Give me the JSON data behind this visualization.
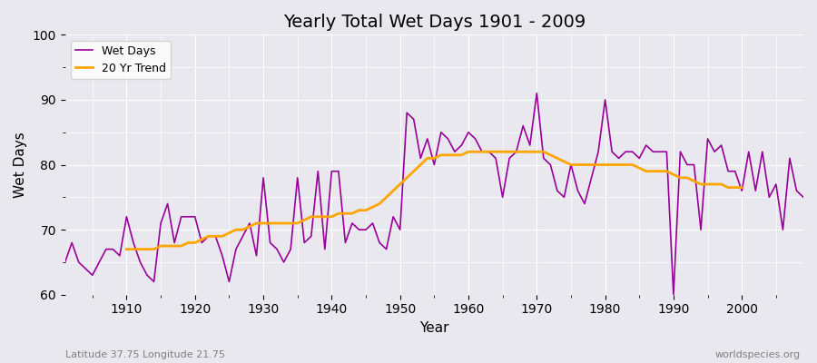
{
  "title": "Yearly Total Wet Days 1901 - 2009",
  "xlabel": "Year",
  "ylabel": "Wet Days",
  "subtitle": "Latitude 37.75 Longitude 21.75",
  "watermark": "worldspecies.org",
  "ylim": [
    60,
    100
  ],
  "xlim": [
    1901,
    2009
  ],
  "bg_color": "#e8e8ee",
  "wet_days_color": "#990099",
  "trend_color": "#FFA500",
  "years": [
    1901,
    1902,
    1903,
    1904,
    1905,
    1906,
    1907,
    1908,
    1909,
    1910,
    1911,
    1912,
    1913,
    1914,
    1915,
    1916,
    1917,
    1918,
    1919,
    1920,
    1921,
    1922,
    1923,
    1924,
    1925,
    1926,
    1927,
    1928,
    1929,
    1930,
    1931,
    1932,
    1933,
    1934,
    1935,
    1936,
    1937,
    1938,
    1939,
    1940,
    1941,
    1942,
    1943,
    1944,
    1945,
    1946,
    1947,
    1948,
    1949,
    1950,
    1951,
    1952,
    1953,
    1954,
    1955,
    1956,
    1957,
    1958,
    1959,
    1960,
    1961,
    1962,
    1963,
    1964,
    1965,
    1966,
    1967,
    1968,
    1969,
    1970,
    1971,
    1972,
    1973,
    1974,
    1975,
    1976,
    1977,
    1978,
    1979,
    1980,
    1981,
    1982,
    1983,
    1984,
    1985,
    1986,
    1987,
    1988,
    1989,
    1990,
    1991,
    1992,
    1993,
    1994,
    1995,
    1996,
    1997,
    1998,
    1999,
    2000,
    2001,
    2002,
    2003,
    2004,
    2005,
    2006,
    2007,
    2008,
    2009
  ],
  "wet_days": [
    65,
    68,
    65,
    64,
    63,
    65,
    67,
    67,
    66,
    72,
    68,
    65,
    63,
    62,
    71,
    74,
    68,
    72,
    72,
    72,
    68,
    69,
    69,
    66,
    62,
    67,
    69,
    71,
    66,
    78,
    68,
    67,
    65,
    67,
    78,
    68,
    69,
    79,
    67,
    79,
    79,
    68,
    71,
    70,
    70,
    71,
    68,
    67,
    72,
    70,
    88,
    87,
    81,
    84,
    80,
    85,
    84,
    82,
    83,
    85,
    84,
    82,
    82,
    81,
    75,
    81,
    82,
    86,
    83,
    91,
    81,
    80,
    76,
    75,
    80,
    76,
    74,
    78,
    82,
    90,
    82,
    81,
    82,
    82,
    81,
    83,
    82,
    82,
    82,
    60,
    82,
    80,
    80,
    70,
    84,
    82,
    83,
    79,
    79,
    76,
    82,
    76,
    82,
    75,
    77,
    70,
    81,
    76,
    75
  ],
  "trend_years": [
    1910,
    1911,
    1912,
    1913,
    1914,
    1915,
    1916,
    1917,
    1918,
    1919,
    1920,
    1921,
    1922,
    1923,
    1924,
    1925,
    1926,
    1927,
    1928,
    1929,
    1930,
    1931,
    1932,
    1933,
    1934,
    1935,
    1936,
    1937,
    1938,
    1939,
    1940,
    1941,
    1942,
    1943,
    1944,
    1945,
    1946,
    1947,
    1948,
    1949,
    1950,
    1951,
    1952,
    1953,
    1954,
    1955,
    1956,
    1957,
    1958,
    1959,
    1960,
    1961,
    1962,
    1963,
    1964,
    1965,
    1966,
    1967,
    1968,
    1969,
    1970,
    1971,
    1972,
    1973,
    1974,
    1975,
    1976,
    1977,
    1978,
    1979,
    1980,
    1981,
    1982,
    1983,
    1984,
    1985,
    1986,
    1987,
    1988,
    1989,
    1990,
    1991,
    1992,
    1993,
    1994,
    1995,
    1996,
    1997,
    1998,
    1999,
    2000
  ],
  "trend_values": [
    67.0,
    67.0,
    67.0,
    67.0,
    67.0,
    67.5,
    67.5,
    67.5,
    67.5,
    68.0,
    68.0,
    68.5,
    69.0,
    69.0,
    69.0,
    69.5,
    70.0,
    70.0,
    70.5,
    71.0,
    71.0,
    71.0,
    71.0,
    71.0,
    71.0,
    71.0,
    71.5,
    72.0,
    72.0,
    72.0,
    72.0,
    72.5,
    72.5,
    72.5,
    73.0,
    73.0,
    73.5,
    74.0,
    75.0,
    76.0,
    77.0,
    78.0,
    79.0,
    80.0,
    81.0,
    81.0,
    81.5,
    81.5,
    81.5,
    81.5,
    82.0,
    82.0,
    82.0,
    82.0,
    82.0,
    82.0,
    82.0,
    82.0,
    82.0,
    82.0,
    82.0,
    82.0,
    81.5,
    81.0,
    80.5,
    80.0,
    80.0,
    80.0,
    80.0,
    80.0,
    80.0,
    80.0,
    80.0,
    80.0,
    80.0,
    79.5,
    79.0,
    79.0,
    79.0,
    79.0,
    78.5,
    78.0,
    78.0,
    77.5,
    77.0,
    77.0,
    77.0,
    77.0,
    76.5,
    76.5,
    76.5
  ]
}
